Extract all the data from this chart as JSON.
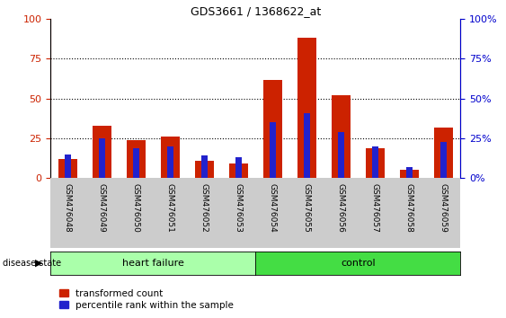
{
  "title": "GDS3661 / 1368622_at",
  "samples": [
    "GSM476048",
    "GSM476049",
    "GSM476050",
    "GSM476051",
    "GSM476052",
    "GSM476053",
    "GSM476054",
    "GSM476055",
    "GSM476056",
    "GSM476057",
    "GSM476058",
    "GSM476059"
  ],
  "red_values": [
    12,
    33,
    24,
    26,
    11,
    9,
    62,
    88,
    52,
    19,
    5,
    32
  ],
  "blue_values": [
    15,
    25,
    19,
    20,
    14,
    13,
    35,
    41,
    29,
    20,
    7,
    23
  ],
  "red_color": "#cc2200",
  "blue_color": "#2222cc",
  "bar_width": 0.55,
  "blue_bar_width": 0.18,
  "ylim": [
    0,
    100
  ],
  "yticks": [
    0,
    25,
    50,
    75,
    100
  ],
  "heart_failure_color": "#aaffaa",
  "control_color": "#44dd44",
  "heart_failure_label": "heart failure",
  "control_label": "control",
  "disease_state_label": "disease state",
  "legend_red_label": "transformed count",
  "legend_blue_label": "percentile rank within the sample",
  "left_ytick_color": "#cc2200",
  "right_ytick_color": "#0000cc",
  "tick_label_bg": "#cccccc",
  "n_heart_failure": 6,
  "n_control": 6
}
